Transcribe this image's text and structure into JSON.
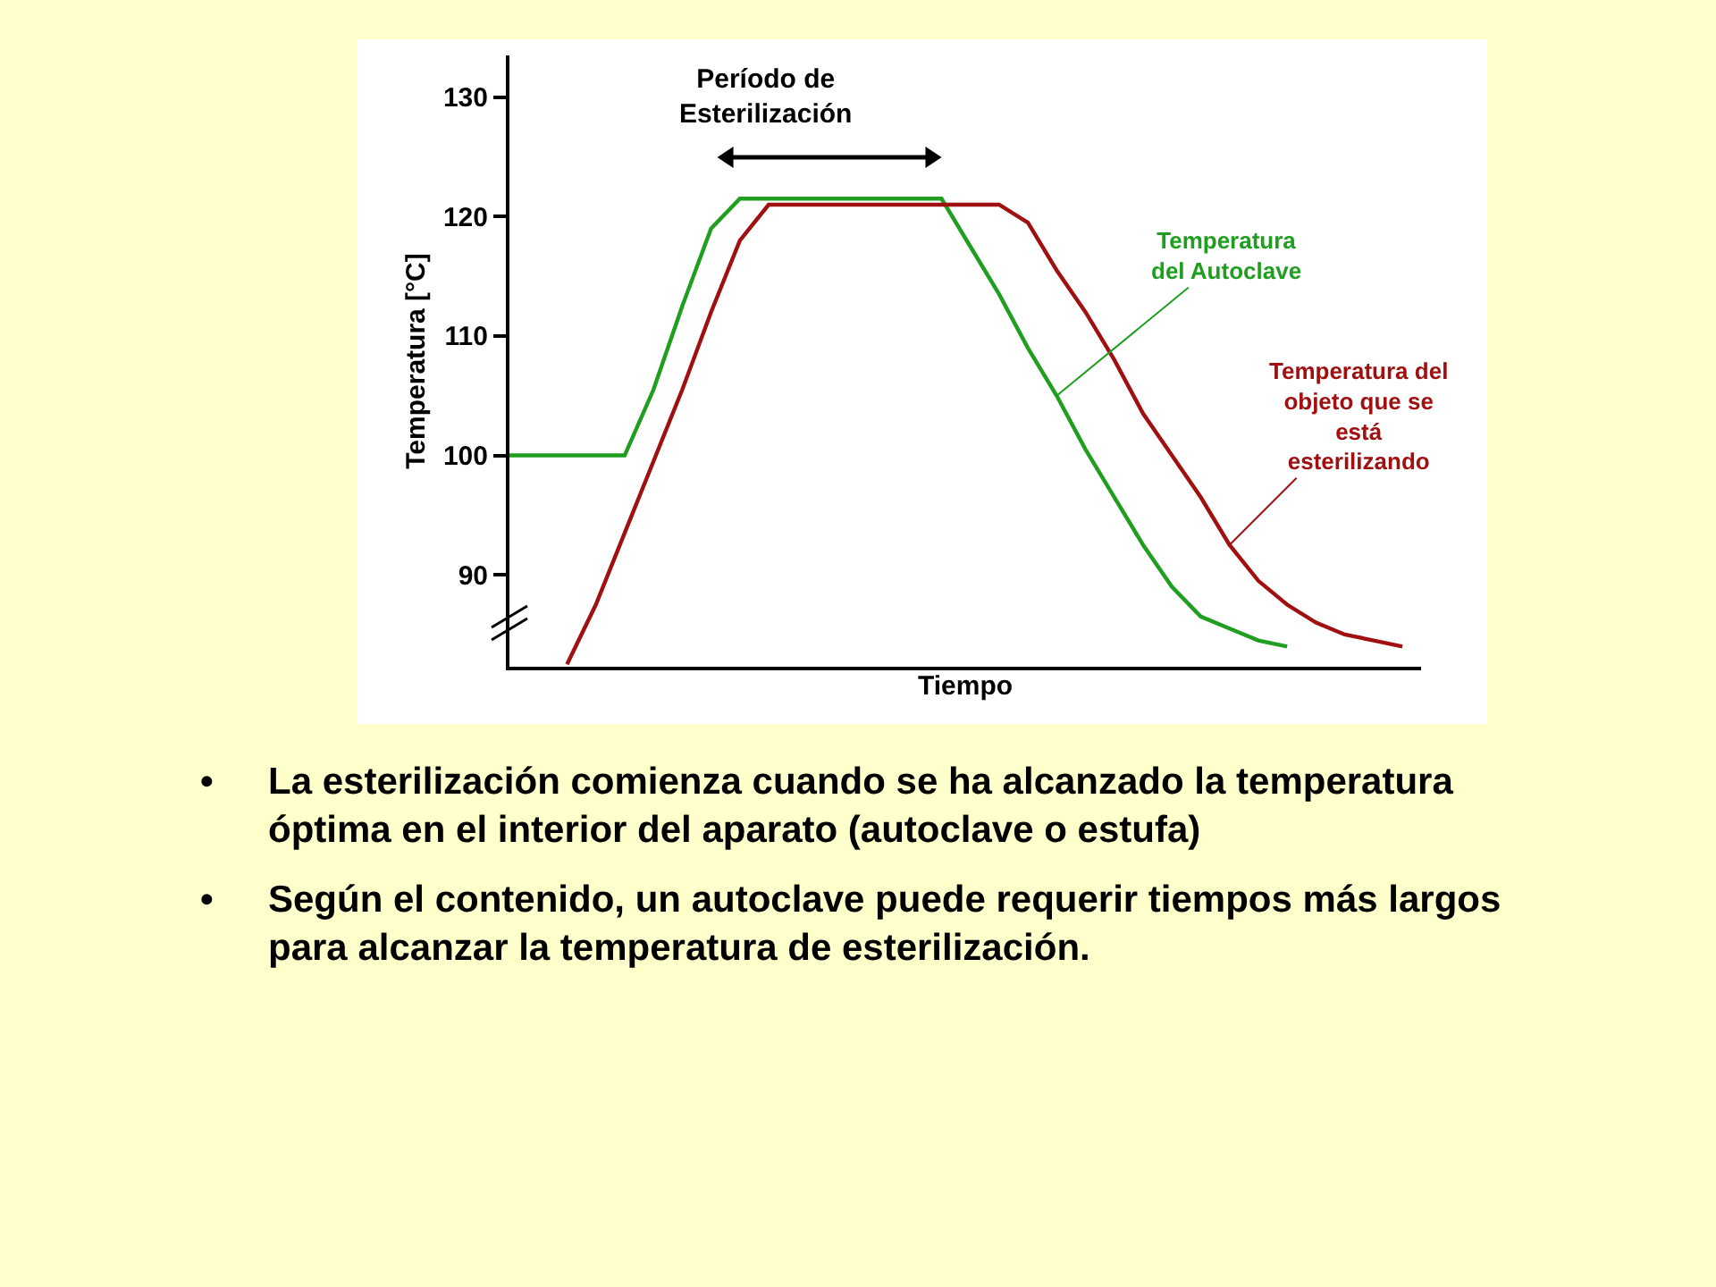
{
  "chart_data": {
    "type": "line",
    "xlabel": "Tiempo",
    "ylabel": "Temperatura [°C]",
    "categories": [
      null,
      null,
      null,
      null,
      null,
      null,
      null,
      null,
      null,
      null,
      null,
      null,
      null,
      null,
      null,
      null,
      null,
      null,
      null,
      null,
      null,
      null,
      null,
      null,
      null,
      null,
      null,
      null,
      null,
      null,
      null,
      null
    ],
    "series": [
      {
        "name": "Temperatura del Autoclave",
        "color": "#1f9e1f",
        "values": [
          100,
          100,
          100,
          100,
          100,
          105.5,
          112.5,
          119,
          121.5,
          121.5,
          121.5,
          121.5,
          121.5,
          121.5,
          121.5,
          121.5,
          117.5,
          113.5,
          109,
          105,
          100.5,
          96.5,
          92.5,
          89,
          86.5,
          85.5,
          84.5,
          84,
          null,
          null,
          null,
          null
        ]
      },
      {
        "name": "Temperatura del objeto que se está esterilizando",
        "color": "#a01010",
        "values": [
          null,
          null,
          82.5,
          87.5,
          93.5,
          99.5,
          105.5,
          112,
          118,
          121,
          121,
          121,
          121,
          121,
          121,
          121,
          121,
          121,
          119.5,
          115.5,
          112,
          108,
          103.5,
          100,
          96.5,
          92.5,
          89.5,
          87.5,
          86,
          85,
          84.5,
          84
        ]
      }
    ],
    "ylim": [
      82.3,
      133.5
    ],
    "yticks": [
      90,
      100,
      110,
      120,
      130
    ],
    "tick_labels": "y",
    "annotations": [
      "Período de Esterilización",
      "• La esterilización comienza cuando se ha alcanzado la temperatura óptima en el interior del aparato (autoclave o estufa)",
      "• Según el contenido, un autoclave puede requerir tiempos más largos para alcanzar la temperatura de esterilización."
    ]
  }
}
